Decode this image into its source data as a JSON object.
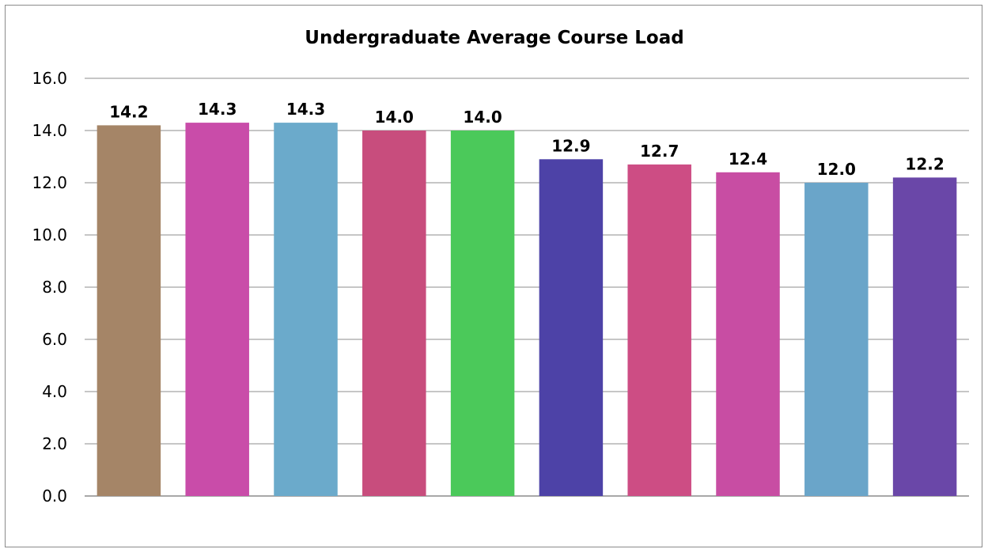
{
  "chart_data": {
    "type": "bar",
    "title": "Undergraduate Average Course Load",
    "xlabel": "",
    "ylabel": "",
    "categories": [
      "",
      "",
      "",
      "",
      "",
      "",
      "",
      "",
      "",
      ""
    ],
    "values": [
      14.2,
      14.3,
      14.3,
      14.0,
      14.0,
      12.9,
      12.7,
      12.4,
      12.0,
      12.2
    ],
    "colors": [
      "#a58567",
      "#c94ca9",
      "#6baacb",
      "#c84d7d",
      "#4bc95a",
      "#4d42a7",
      "#cd4d84",
      "#c84da3",
      "#6aa5c9",
      "#6a47a8"
    ],
    "ylim": [
      0,
      16
    ],
    "yticks": [
      "0.0",
      "2.0",
      "4.0",
      "6.0",
      "8.0",
      "10.0",
      "12.0",
      "14.0",
      "16.0"
    ],
    "grid": true,
    "legend": "none"
  }
}
